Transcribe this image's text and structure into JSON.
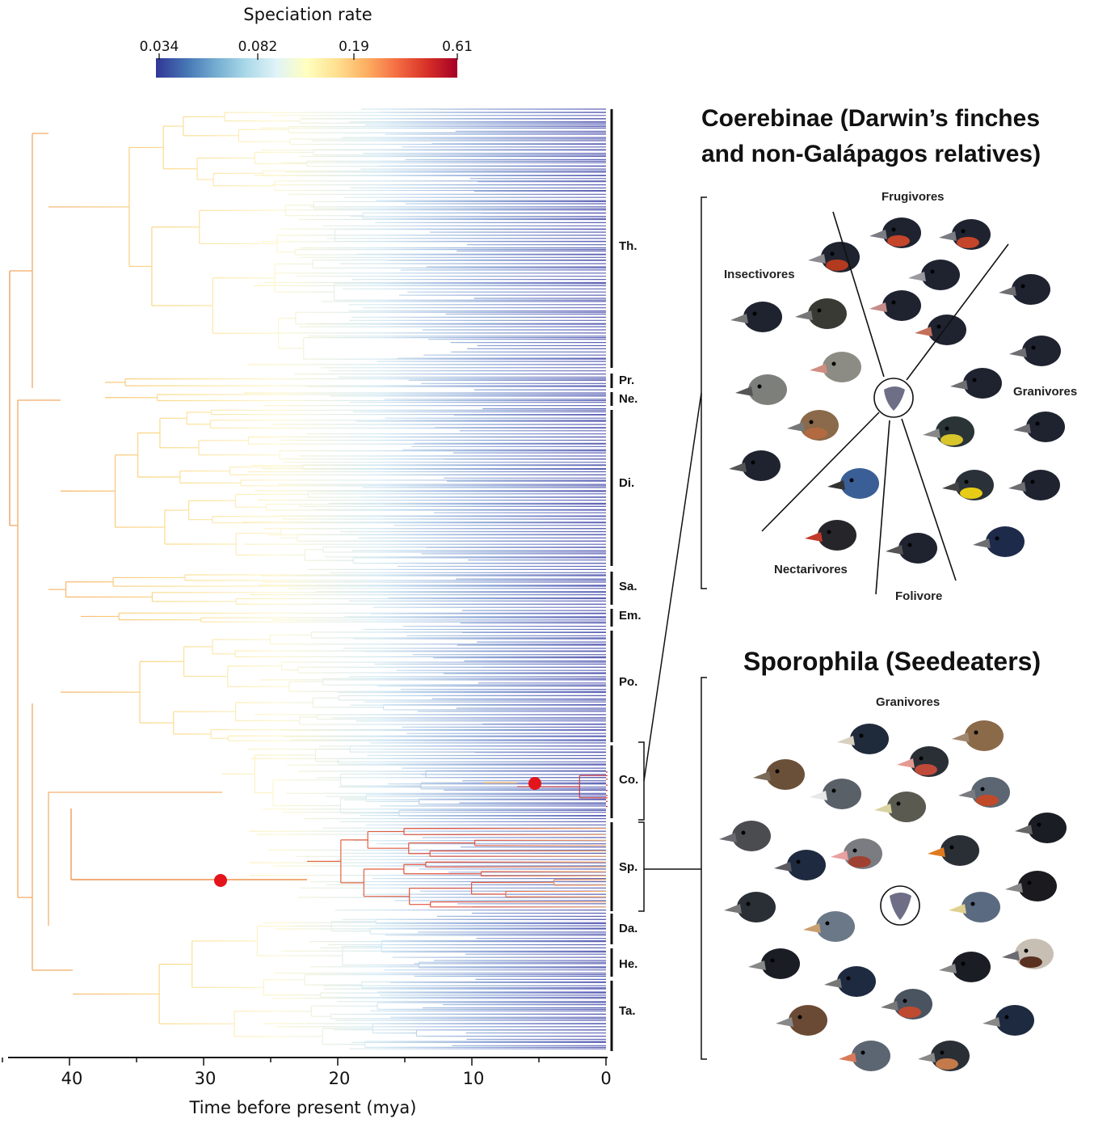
{
  "colorbar": {
    "title": "Speciation rate",
    "ticks": [
      "0.034",
      "0.082",
      "0.19",
      "0.61"
    ],
    "colors": [
      "#313695",
      "#4575b4",
      "#74add1",
      "#abd9e9",
      "#e0f3f8",
      "#ffffbf",
      "#fee090",
      "#fdae61",
      "#f46d43",
      "#d73027",
      "#a50026"
    ]
  },
  "tree": {
    "xaxis_label": "Time before present (mya)",
    "xticks": [
      "40",
      "30",
      "20",
      "10",
      "0"
    ],
    "clades": [
      "Th.",
      "Pr.",
      "Ne.",
      "Di.",
      "Sa.",
      "Em.",
      "Po.",
      "Co.",
      "Sp.",
      "Da.",
      "He.",
      "Ta."
    ],
    "rate_shift_marker_color": "#e3141a"
  },
  "panels": {
    "coerebinae": {
      "title_line1": "Coerebinae (Darwin’s finches",
      "title_line2": "and non-Galápagos relatives)",
      "guilds": [
        "Frugivores",
        "Insectivores",
        "Granivores",
        "Nectarivores",
        "Folivore"
      ]
    },
    "sporophila": {
      "title": "Sporophila (Seedeaters)",
      "guilds": [
        "Granivores"
      ]
    }
  }
}
